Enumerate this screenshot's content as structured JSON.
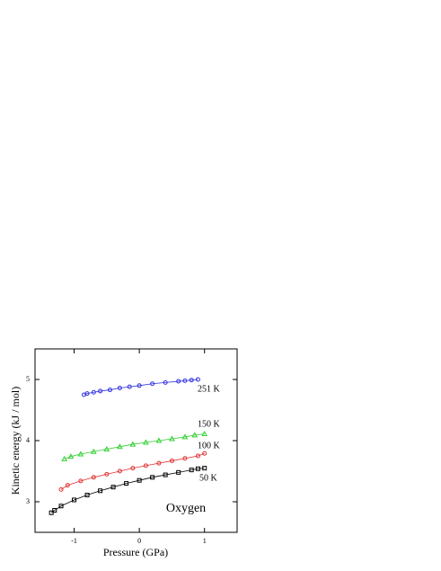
{
  "chart_data": {
    "type": "line",
    "xlabel": "Pressure  (GPa)",
    "ylabel": "Kinetic energy  (kJ / mol)",
    "annotation": "Oxygen",
    "xlim": [
      -1.6,
      1.5
    ],
    "xticks": [
      -1,
      0,
      1
    ],
    "ylim": [
      2.5,
      5.5
    ],
    "yticks": [
      3,
      4,
      5
    ],
    "series": [
      {
        "name": "50 K",
        "color": "#000000",
        "marker": "square",
        "x": [
          -1.35,
          -1.3,
          -1.2,
          -1.0,
          -0.8,
          -0.6,
          -0.4,
          -0.2,
          0,
          0.2,
          0.4,
          0.6,
          0.8,
          0.9,
          1.0
        ],
        "values": [
          2.82,
          2.86,
          2.93,
          3.03,
          3.11,
          3.18,
          3.24,
          3.3,
          3.35,
          3.4,
          3.44,
          3.48,
          3.52,
          3.54,
          3.55
        ]
      },
      {
        "name": "100 K",
        "color": "#e03030",
        "marker": "circle",
        "x": [
          -1.2,
          -1.1,
          -0.9,
          -0.7,
          -0.5,
          -0.3,
          -0.1,
          0.1,
          0.3,
          0.5,
          0.7,
          0.9,
          1.0
        ],
        "values": [
          3.2,
          3.27,
          3.34,
          3.4,
          3.45,
          3.5,
          3.55,
          3.59,
          3.63,
          3.67,
          3.71,
          3.75,
          3.79
        ]
      },
      {
        "name": "150 K",
        "color": "#30d030",
        "marker": "triangle",
        "x": [
          -1.15,
          -1.05,
          -0.9,
          -0.7,
          -0.5,
          -0.3,
          -0.1,
          0.1,
          0.3,
          0.5,
          0.7,
          0.85,
          1.0
        ],
        "values": [
          3.7,
          3.74,
          3.78,
          3.82,
          3.86,
          3.9,
          3.94,
          3.97,
          4.0,
          4.03,
          4.06,
          4.09,
          4.11
        ]
      },
      {
        "name": "251 K",
        "color": "#3030e0",
        "marker": "circle",
        "x": [
          -0.85,
          -0.8,
          -0.7,
          -0.6,
          -0.45,
          -0.3,
          -0.15,
          0,
          0.2,
          0.4,
          0.6,
          0.7,
          0.8,
          0.9
        ],
        "values": [
          4.75,
          4.77,
          4.79,
          4.81,
          4.83,
          4.86,
          4.88,
          4.9,
          4.93,
          4.95,
          4.97,
          4.98,
          4.99,
          5.0
        ]
      }
    ]
  }
}
